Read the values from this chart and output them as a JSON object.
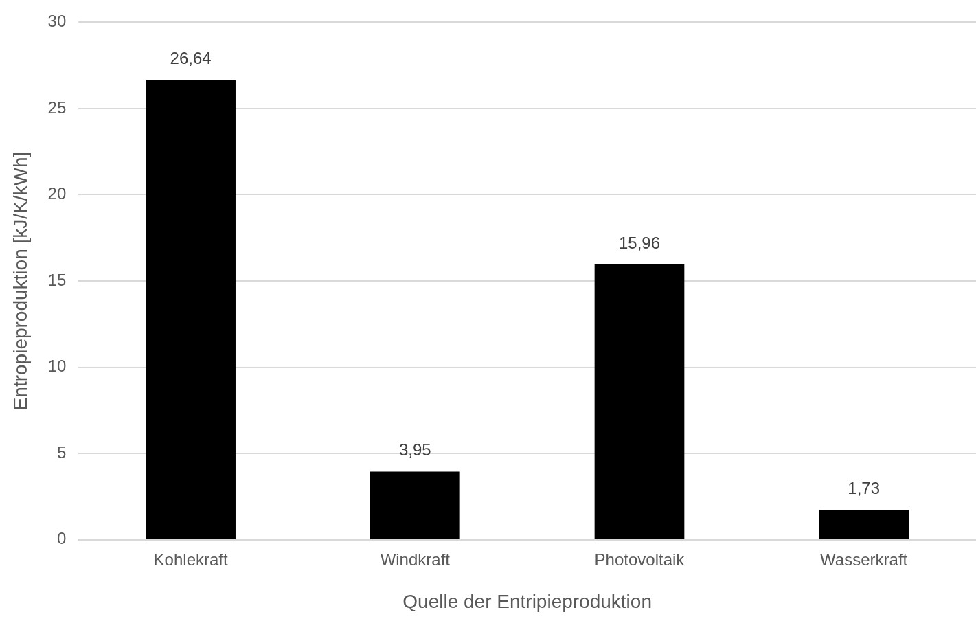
{
  "chart_data": {
    "type": "bar",
    "xlabel": "Quelle der Entripieproduktion",
    "ylabel": "Entropieproduktion [kJ/K/kWh]",
    "categories": [
      "Kohlekraft",
      "Windkraft",
      "Photovoltaik",
      "Wasserkraft"
    ],
    "values": [
      26.64,
      3.95,
      15.96,
      1.73
    ],
    "value_labels": [
      "26,64",
      "3,95",
      "15,96",
      "1,73"
    ],
    "color": "#000000",
    "ylim": [
      0,
      30
    ],
    "yticks": [
      0,
      5,
      10,
      15,
      20,
      25,
      30
    ],
    "grid": "y"
  }
}
